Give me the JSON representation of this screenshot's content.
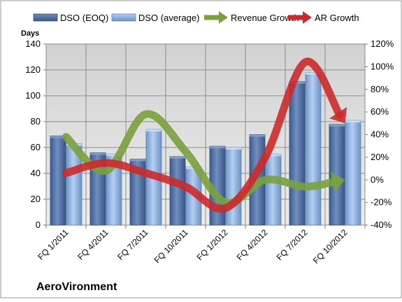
{
  "chart_data": {
    "type": "bar",
    "title": "AeroVironment",
    "ylabel": "Days",
    "categories": [
      "FQ 1/2011",
      "FQ 4/2011",
      "FQ 7/2011",
      "FQ 10/2011",
      "FQ 1/2012",
      "FQ 4/2012",
      "FQ 7/2012",
      "FQ 10/2012"
    ],
    "ylim": [
      0,
      140
    ],
    "y_ticks": [
      "0",
      "20",
      "40",
      "60",
      "80",
      "100",
      "120",
      "140"
    ],
    "y2lim": [
      -40,
      120
    ],
    "y2_ticks": [
      "-40%",
      "-20%",
      "0%",
      "20%",
      "40%",
      "60%",
      "80%",
      "100%",
      "120%"
    ],
    "grid": true,
    "legend_position": "top",
    "series": [
      {
        "name": "DSO (EOQ)",
        "kind": "bar",
        "axis": "left",
        "color": "#4f6fa0",
        "values": [
          69,
          56,
          51,
          53,
          61,
          70,
          111,
          78
        ]
      },
      {
        "name": "DSO (average)",
        "kind": "bar",
        "axis": "left",
        "color": "#8fb3e0",
        "values": [
          63,
          55,
          74,
          45,
          60,
          55,
          118,
          81
        ]
      },
      {
        "name": "Revenue Growth",
        "kind": "arrow",
        "axis": "right",
        "color": "#7aa13c",
        "values": [
          38,
          8,
          58,
          25,
          -20,
          0,
          -6,
          0
        ]
      },
      {
        "name": "AR Growth",
        "kind": "arrow",
        "axis": "right",
        "color": "#cc2a2a",
        "values": [
          6,
          15,
          6,
          -6,
          -25,
          20,
          104,
          50
        ]
      }
    ]
  }
}
